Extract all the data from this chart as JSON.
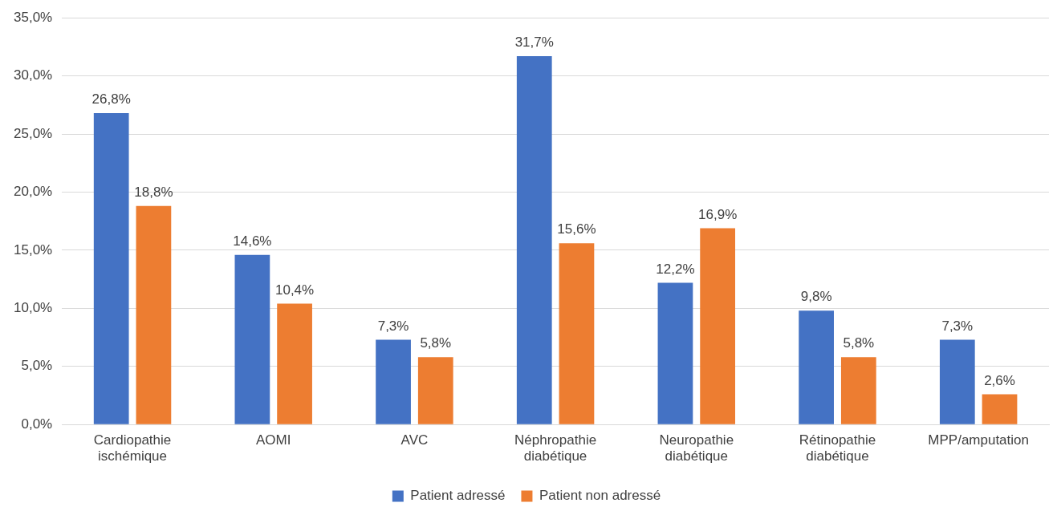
{
  "chart_data": {
    "type": "bar",
    "categories": [
      "Cardiopathie ischémique",
      "AOMI",
      "AVC",
      "Néphropathie diabétique",
      "Neuropathie diabétique",
      "Rétinopathie diabétique",
      "MPP/amputation"
    ],
    "series": [
      {
        "name": "Patient adressé",
        "color": "#4472c4",
        "values": [
          26.8,
          14.6,
          7.3,
          31.7,
          12.2,
          9.8,
          7.3
        ],
        "value_labels": [
          "26,8%",
          "14,6%",
          "7,3%",
          "31,7%",
          "12,2%",
          "9,8%",
          "7,3%"
        ]
      },
      {
        "name": "Patient non adressé",
        "color": "#ed7d31",
        "values": [
          18.8,
          10.4,
          5.8,
          15.6,
          16.9,
          5.8,
          2.6
        ],
        "value_labels": [
          "18,8%",
          "10,4%",
          "5,8%",
          "15,6%",
          "16,9%",
          "5,8%",
          "2,6%"
        ]
      }
    ],
    "ylim": [
      0,
      35
    ],
    "yticks": [
      {
        "value": 0,
        "label": "0,0%"
      },
      {
        "value": 5,
        "label": "5,0%"
      },
      {
        "value": 10,
        "label": "10,0%"
      },
      {
        "value": 15,
        "label": "15,0%"
      },
      {
        "value": 20,
        "label": "20,0%"
      },
      {
        "value": 25,
        "label": "25,0%"
      },
      {
        "value": 30,
        "label": "30,0%"
      },
      {
        "value": 35,
        "label": "35,0%"
      }
    ],
    "grid": "y",
    "legend": "bottom"
  }
}
